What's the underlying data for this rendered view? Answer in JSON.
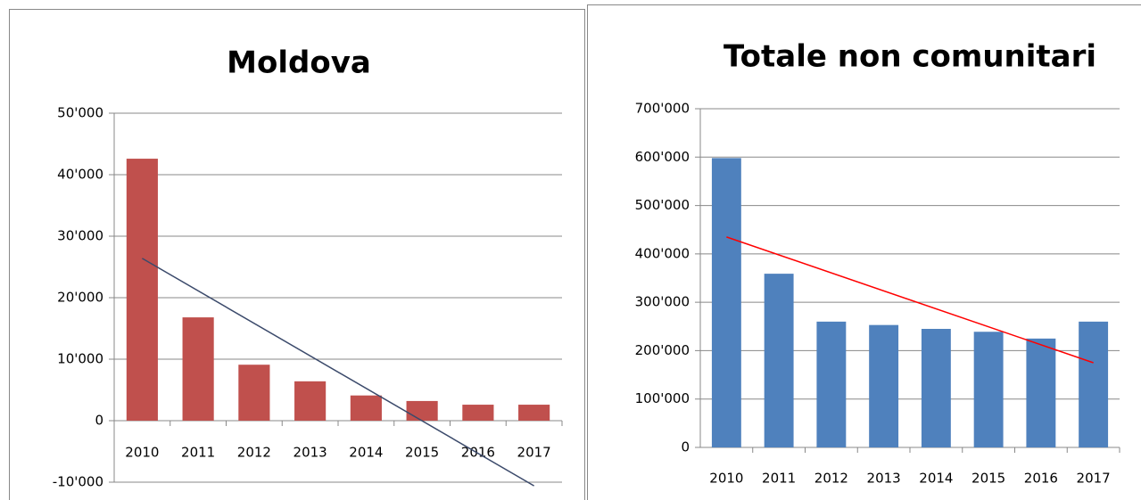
{
  "chart_data": [
    {
      "type": "bar",
      "title": "Moldova",
      "categories": [
        "2010",
        "2011",
        "2012",
        "2013",
        "2014",
        "2015",
        "2016",
        "2017"
      ],
      "values": [
        42600,
        16800,
        9100,
        6400,
        4100,
        3200,
        2600,
        2600
      ],
      "color": "#c0504d",
      "trend_line": {
        "color": "#3b4a6b",
        "values": [
          26400,
          -10600
        ]
      },
      "ylim": [
        -10000,
        50000
      ],
      "yticks": [
        {
          "value": -10000,
          "label": "-10'000"
        },
        0,
        {
          "value": 10000,
          "label": "10'000"
        },
        {
          "value": 20000,
          "label": "20'000"
        },
        {
          "value": 30000,
          "label": "30'000"
        },
        {
          "value": 40000,
          "label": "40'000"
        },
        {
          "value": 50000,
          "label": "50'000"
        }
      ],
      "grid": true
    },
    {
      "type": "bar",
      "title": "Totale non comunitari",
      "categories": [
        "2010",
        "2011",
        "2012",
        "2013",
        "2014",
        "2015",
        "2016",
        "2017"
      ],
      "values": [
        598000,
        359000,
        260000,
        253000,
        245000,
        239000,
        225000,
        260000
      ],
      "color": "#4f81bd",
      "trend_line": {
        "color": "#ff0000",
        "values": [
          435000,
          175000
        ]
      },
      "ylim": [
        0,
        700000
      ],
      "yticks": [
        0,
        {
          "value": 100000,
          "label": "100'000"
        },
        {
          "value": 200000,
          "label": "200'000"
        },
        {
          "value": 300000,
          "label": "300'000"
        },
        {
          "value": 400000,
          "label": "400'000"
        },
        {
          "value": 500000,
          "label": "500'000"
        },
        {
          "value": 600000,
          "label": "600'000"
        },
        {
          "value": 700000,
          "label": "700'000"
        }
      ],
      "grid": true
    }
  ]
}
